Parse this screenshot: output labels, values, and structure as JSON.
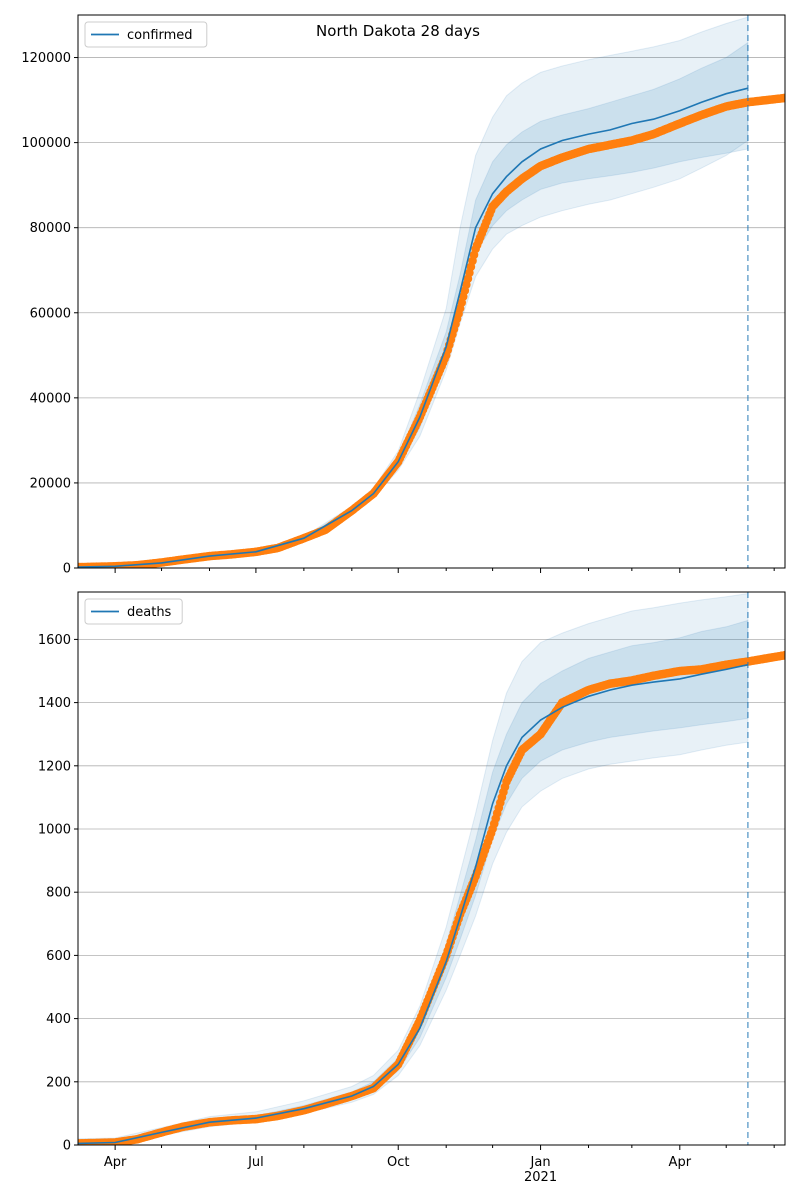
{
  "title": "North Dakota 28 days",
  "chart_data": [
    {
      "type": "line",
      "name": "confirmed-panel",
      "legend": "confirmed",
      "legend_position": "top-left",
      "grid_y": true,
      "xlim": [
        "2020-03-08",
        "2021-06-08"
      ],
      "ylim": [
        0,
        130000
      ],
      "yticks": [
        0,
        20000,
        40000,
        60000,
        80000,
        100000,
        120000
      ],
      "yticklabels": [
        "0",
        "20000",
        "40000",
        "60000",
        "80000",
        "100000",
        "120000"
      ],
      "forecast_date": "2021-05-15",
      "model": {
        "dates": [
          "2020-03-08",
          "2020-04-01",
          "2020-05-01",
          "2020-06-01",
          "2020-07-01",
          "2020-08-01",
          "2020-09-01",
          "2020-09-15",
          "2020-10-01",
          "2020-10-15",
          "2020-11-01",
          "2020-11-10",
          "2020-11-20",
          "2020-12-01",
          "2020-12-10",
          "2020-12-20",
          "2021-01-01",
          "2021-01-15",
          "2021-02-01",
          "2021-02-15",
          "2021-03-01",
          "2021-03-15",
          "2021-04-01",
          "2021-04-15",
          "2021-05-01",
          "2021-05-15"
        ],
        "median": [
          200,
          400,
          1200,
          2800,
          3800,
          7000,
          13500,
          17500,
          25000,
          35500,
          52000,
          65000,
          80000,
          88000,
          92000,
          95500,
          98500,
          100500,
          102000,
          103000,
          104500,
          105500,
          107500,
          109500,
          111500,
          112800
        ],
        "band_inner": {
          "low": [
            150,
            380,
            1150,
            2700,
            3700,
            6800,
            13000,
            17000,
            24000,
            33000,
            49500,
            62000,
            74000,
            80500,
            84000,
            86500,
            89000,
            90500,
            91500,
            92200,
            93000,
            94000,
            95500,
            96500,
            97500,
            98500
          ],
          "high": [
            250,
            420,
            1250,
            2900,
            3900,
            7200,
            14000,
            18000,
            26000,
            38500,
            55500,
            69000,
            86500,
            95500,
            99500,
            102500,
            105000,
            106500,
            108000,
            109500,
            111000,
            112500,
            115000,
            117500,
            120000,
            123500
          ]
        },
        "band_outer": {
          "low": [
            100,
            350,
            1100,
            2600,
            3600,
            6600,
            12500,
            16500,
            23000,
            31000,
            46500,
            57500,
            68500,
            75000,
            78500,
            80500,
            82500,
            84000,
            85500,
            86500,
            88000,
            89500,
            91500,
            94000,
            97000,
            100500
          ],
          "high": [
            300,
            450,
            1300,
            3000,
            4000,
            7400,
            14500,
            18800,
            27500,
            41500,
            61000,
            80000,
            97000,
            106000,
            111000,
            114000,
            116500,
            118000,
            119500,
            120500,
            121500,
            122500,
            124000,
            126000,
            128000,
            129500
          ]
        }
      },
      "observed": {
        "dates": [
          "2020-03-08",
          "2020-04-01",
          "2020-04-15",
          "2020-05-01",
          "2020-05-15",
          "2020-06-01",
          "2020-06-15",
          "2020-07-01",
          "2020-07-15",
          "2020-08-01",
          "2020-08-15",
          "2020-09-01",
          "2020-09-15",
          "2020-10-01",
          "2020-10-15",
          "2020-11-01",
          "2020-11-10",
          "2020-11-20",
          "2020-12-01",
          "2020-12-10",
          "2020-12-20",
          "2021-01-01",
          "2021-01-15",
          "2021-02-01",
          "2021-02-15",
          "2021-03-01",
          "2021-03-15",
          "2021-04-01",
          "2021-04-15",
          "2021-05-01",
          "2021-05-15",
          "2021-06-08"
        ],
        "values": [
          200,
          400,
          650,
          1300,
          2000,
          2800,
          3200,
          3800,
          4700,
          7000,
          9000,
          13500,
          17500,
          25000,
          35500,
          50000,
          61000,
          75000,
          85000,
          88500,
          91500,
          94500,
          96500,
          98500,
          99500,
          100500,
          102000,
          104500,
          106500,
          108500,
          109500,
          110500
        ]
      }
    },
    {
      "type": "line",
      "name": "deaths-panel",
      "legend": "deaths",
      "legend_position": "top-left",
      "grid_y": true,
      "xlim": [
        "2020-03-08",
        "2021-06-08"
      ],
      "ylim": [
        0,
        1750
      ],
      "yticks": [
        0,
        200,
        400,
        600,
        800,
        1000,
        1200,
        1400,
        1600
      ],
      "yticklabels": [
        "0",
        "200",
        "400",
        "600",
        "800",
        "1000",
        "1200",
        "1400",
        "1600"
      ],
      "xticklabels": [
        "Apr",
        "Jul",
        "Oct",
        "Jan\n2021",
        "Apr"
      ],
      "xtickdates": [
        "2020-04-01",
        "2020-07-01",
        "2020-10-01",
        "2021-01-01",
        "2021-04-01"
      ],
      "forecast_date": "2021-05-15",
      "model": {
        "dates": [
          "2020-03-08",
          "2020-04-01",
          "2020-05-01",
          "2020-06-01",
          "2020-07-01",
          "2020-08-01",
          "2020-09-01",
          "2020-09-15",
          "2020-10-01",
          "2020-10-15",
          "2020-11-01",
          "2020-11-10",
          "2020-11-20",
          "2020-12-01",
          "2020-12-10",
          "2020-12-20",
          "2021-01-01",
          "2021-01-15",
          "2021-02-01",
          "2021-02-15",
          "2021-03-01",
          "2021-03-15",
          "2021-04-01",
          "2021-04-15",
          "2021-05-01",
          "2021-05-15"
        ],
        "median": [
          5,
          8,
          40,
          72,
          85,
          115,
          155,
          185,
          255,
          370,
          580,
          720,
          880,
          1080,
          1200,
          1290,
          1345,
          1385,
          1420,
          1440,
          1455,
          1465,
          1475,
          1490,
          1505,
          1520
        ],
        "band_inner": {
          "low": [
            3,
            6,
            35,
            65,
            80,
            108,
            145,
            172,
            235,
            340,
            530,
            650,
            790,
            970,
            1080,
            1160,
            1215,
            1250,
            1275,
            1290,
            1300,
            1310,
            1320,
            1330,
            1340,
            1350
          ],
          "high": [
            8,
            10,
            45,
            80,
            92,
            125,
            168,
            200,
            275,
            405,
            635,
            790,
            965,
            1180,
            1300,
            1400,
            1460,
            1500,
            1540,
            1560,
            1580,
            1590,
            1605,
            1625,
            1640,
            1660
          ]
        },
        "band_outer": {
          "low": [
            0,
            4,
            30,
            58,
            74,
            100,
            135,
            160,
            220,
            315,
            490,
            600,
            725,
            890,
            990,
            1070,
            1120,
            1160,
            1190,
            1205,
            1215,
            1225,
            1235,
            1250,
            1265,
            1275
          ],
          "high": [
            20,
            22,
            55,
            90,
            105,
            140,
            185,
            220,
            300,
            440,
            690,
            860,
            1050,
            1280,
            1430,
            1530,
            1590,
            1620,
            1650,
            1670,
            1690,
            1700,
            1715,
            1725,
            1735,
            1745
          ]
        }
      },
      "observed": {
        "dates": [
          "2020-03-08",
          "2020-04-01",
          "2020-04-15",
          "2020-05-01",
          "2020-05-15",
          "2020-06-01",
          "2020-06-15",
          "2020-07-01",
          "2020-07-15",
          "2020-08-01",
          "2020-08-15",
          "2020-09-01",
          "2020-09-15",
          "2020-10-01",
          "2020-10-15",
          "2020-11-01",
          "2020-11-10",
          "2020-11-20",
          "2020-12-01",
          "2020-12-10",
          "2020-12-20",
          "2021-01-01",
          "2021-01-15",
          "2021-02-01",
          "2021-02-15",
          "2021-03-01",
          "2021-03-15",
          "2021-04-01",
          "2021-04-15",
          "2021-05-01",
          "2021-05-15",
          "2021-06-08"
        ],
        "values": [
          5,
          8,
          18,
          40,
          58,
          72,
          78,
          82,
          92,
          110,
          130,
          155,
          180,
          255,
          395,
          600,
          730,
          850,
          1000,
          1150,
          1250,
          1300,
          1400,
          1440,
          1460,
          1470,
          1485,
          1500,
          1505,
          1520,
          1530,
          1550
        ]
      }
    }
  ]
}
